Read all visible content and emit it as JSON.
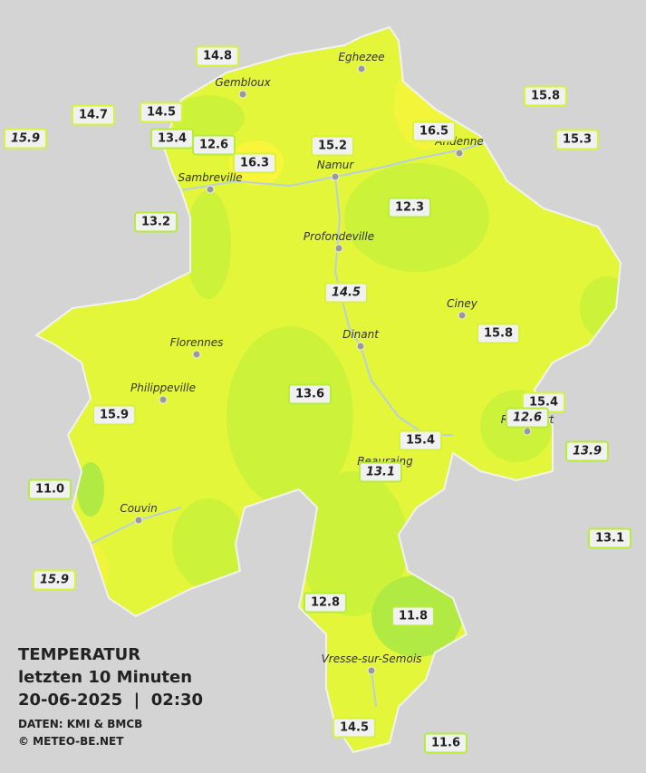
{
  "header": {
    "title": "TEMPERATUR",
    "subtitle": "letzten 10 Minuten",
    "datetime": "20-06-2025  |  02:30",
    "source": "DATEN: KMI & BMCB",
    "copyright": "© METEO-BE.NET"
  },
  "towns": [
    "Eghezee",
    "Gembloux",
    "Andenne",
    "Namur",
    "Sambreville",
    "Profondeville",
    "Ciney",
    "Dinant",
    "Florennes",
    "Philippeville",
    "Rochefort",
    "Beauraing",
    "Couvin",
    "Vresse-sur-Semois"
  ],
  "stations": [
    "14.8",
    "14.7",
    "15.9",
    "14.5",
    "13.4",
    "12.6",
    "16.3",
    "15.2",
    "16.5",
    "15.8",
    "15.3",
    "13.2",
    "12.3",
    "14.5",
    "15.8",
    "13.6",
    "15.9",
    "15.4",
    "12.6",
    "15.4",
    "13.1",
    "13.9",
    "11.0",
    "13.1",
    "15.9",
    "12.8",
    "11.8",
    "14.5",
    "11.6"
  ]
}
